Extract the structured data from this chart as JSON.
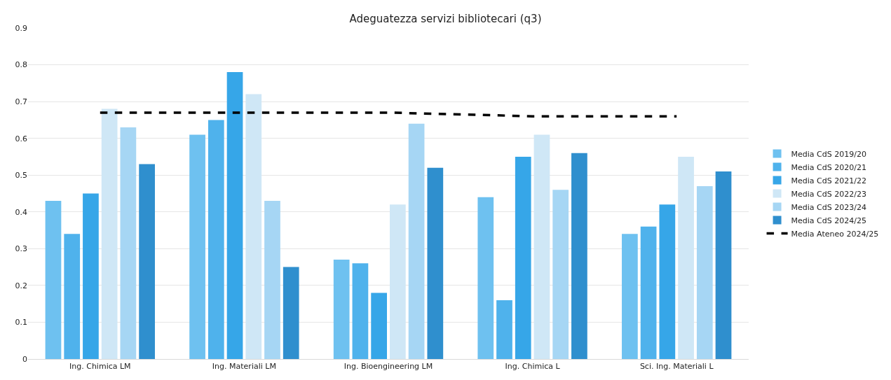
{
  "chart_data": {
    "type": "bar",
    "title": "Adeguatezza servizi bibliotecari (q3)",
    "categories": [
      "Ing. Chimica LM",
      "Ing. Materiali LM",
      "Ing. Bioengineering LM",
      "Ing. Chimica L",
      "Sci. Ing. Materiali L"
    ],
    "series": [
      {
        "name": "Media CdS 2019/20",
        "color": "#6ec1f0",
        "values": [
          0.43,
          0.61,
          0.27,
          0.44,
          0.34
        ]
      },
      {
        "name": "Media CdS 2020/21",
        "color": "#4fb2ec",
        "values": [
          0.34,
          0.65,
          0.26,
          0.16,
          0.36
        ]
      },
      {
        "name": "Media CdS 2021/22",
        "color": "#36a6e8",
        "values": [
          0.45,
          0.78,
          0.18,
          0.55,
          0.42
        ]
      },
      {
        "name": "Media CdS 2022/23",
        "color": "#cfe7f6",
        "values": [
          0.68,
          0.72,
          0.42,
          0.61,
          0.55
        ]
      },
      {
        "name": "Media CdS 2023/24",
        "color": "#a6d6f4",
        "values": [
          0.63,
          0.43,
          0.64,
          0.46,
          0.47
        ]
      },
      {
        "name": "Media CdS 2024/25",
        "color": "#2f8fce",
        "values": [
          0.53,
          0.25,
          0.52,
          0.56,
          0.51
        ]
      },
      {
        "name": "Media Ateneo 2024/25",
        "type": "line",
        "color": "#000000",
        "line_style": "dashed",
        "values": [
          0.67,
          0.67,
          0.67,
          0.66,
          0.66
        ]
      }
    ],
    "ylim": [
      0,
      0.9
    ],
    "yticks": [
      0,
      0.1,
      0.2,
      0.3,
      0.4,
      0.5,
      0.6,
      0.7,
      0.8,
      0.9
    ],
    "grid": "y",
    "legend": "right"
  }
}
